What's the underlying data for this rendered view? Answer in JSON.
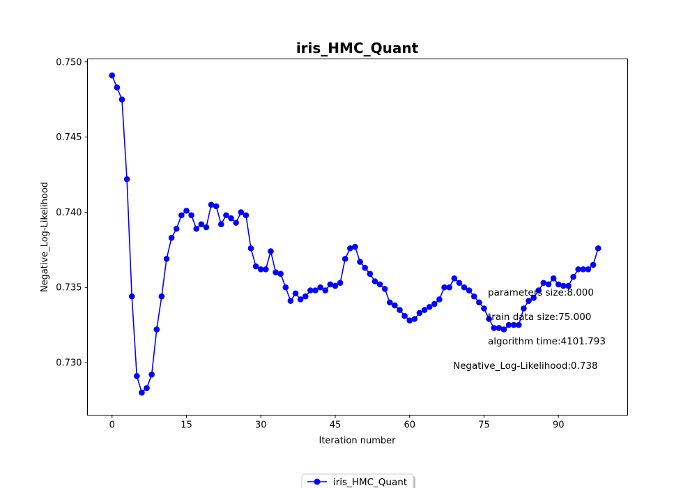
{
  "chart_data": {
    "type": "line",
    "title": "iris_HMC_Quant",
    "xlabel": "Iteration number",
    "ylabel": "Negative_Log-Likelihood",
    "xlim": [
      -4.95,
      103.95
    ],
    "ylim": [
      0.7265,
      0.7502
    ],
    "xticks": [
      0,
      15,
      30,
      45,
      60,
      75,
      90
    ],
    "xtick_labels": [
      "0",
      "15",
      "30",
      "45",
      "60",
      "75",
      "90"
    ],
    "yticks": [
      0.73,
      0.735,
      0.74,
      0.745,
      0.75
    ],
    "ytick_labels": [
      "0.730",
      "0.735",
      "0.740",
      "0.745",
      "0.750"
    ],
    "grid": false,
    "legend_position": "bottom-center",
    "series": [
      {
        "name": "iris_HMC_Quant",
        "color": "#0000ff",
        "marker": "circle",
        "x": [
          0,
          1,
          2,
          3,
          4,
          5,
          6,
          7,
          8,
          9,
          10,
          11,
          12,
          13,
          14,
          15,
          16,
          17,
          18,
          19,
          20,
          21,
          22,
          23,
          24,
          25,
          26,
          27,
          28,
          29,
          30,
          31,
          32,
          33,
          34,
          35,
          36,
          37,
          38,
          39,
          40,
          41,
          42,
          43,
          44,
          45,
          46,
          47,
          48,
          49,
          50,
          51,
          52,
          53,
          54,
          55,
          56,
          57,
          58,
          59,
          60,
          61,
          62,
          63,
          64,
          65,
          66,
          67,
          68,
          69,
          70,
          71,
          72,
          73,
          74,
          75,
          76,
          77,
          78,
          79,
          80,
          81,
          82,
          83,
          84,
          85,
          86,
          87,
          88,
          89,
          90,
          91,
          92,
          93,
          94,
          95,
          96,
          97,
          98
        ],
        "values": [
          0.7491,
          0.7483,
          0.7475,
          0.7422,
          0.7344,
          0.7291,
          0.728,
          0.7283,
          0.7292,
          0.7322,
          0.7344,
          0.7369,
          0.7383,
          0.7389,
          0.7398,
          0.7401,
          0.7398,
          0.7389,
          0.7392,
          0.739,
          0.7405,
          0.7404,
          0.7392,
          0.7398,
          0.7396,
          0.7393,
          0.74,
          0.7398,
          0.7376,
          0.7364,
          0.7362,
          0.7362,
          0.7374,
          0.736,
          0.7359,
          0.735,
          0.7341,
          0.7346,
          0.7342,
          0.7344,
          0.7348,
          0.7348,
          0.735,
          0.7348,
          0.7352,
          0.7351,
          0.7353,
          0.7369,
          0.7376,
          0.7377,
          0.7367,
          0.7363,
          0.7359,
          0.7354,
          0.7352,
          0.7349,
          0.734,
          0.7338,
          0.7335,
          0.7331,
          0.7328,
          0.7329,
          0.7333,
          0.7335,
          0.7337,
          0.7339,
          0.7342,
          0.735,
          0.735,
          0.7356,
          0.7353,
          0.735,
          0.7348,
          0.7344,
          0.734,
          0.7336,
          0.7329,
          0.7323,
          0.7323,
          0.7322,
          0.7325,
          0.7325,
          0.7325,
          0.7336,
          0.7341,
          0.7343,
          0.7348,
          0.7353,
          0.7352,
          0.7356,
          0.7352,
          0.7351,
          0.7351,
          0.7357,
          0.7362,
          0.7362,
          0.7362,
          0.7365,
          0.7376
        ]
      }
    ],
    "annotations": [
      "parameters size:8.000",
      "train data size:75.000",
      "algorithm time:4101.793",
      "Negative_Log-Likelihood:0.738"
    ]
  }
}
